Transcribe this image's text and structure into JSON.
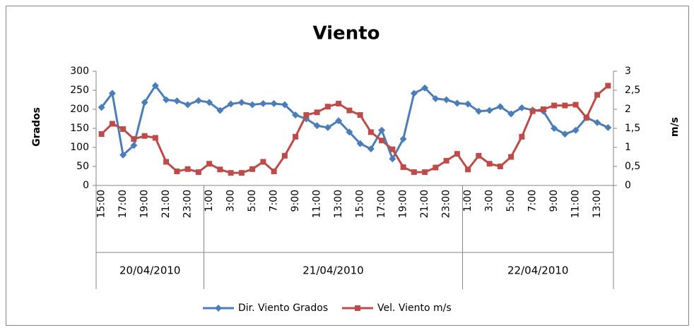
{
  "chart_data": {
    "type": "line",
    "title": "Viento",
    "y_label": "Grados",
    "y2_label": "m/s",
    "category_groups": [
      {
        "label": "20/04/2010",
        "categories": [
          "15:00",
          null,
          "17:00",
          null,
          "19:00",
          null,
          "21:00",
          null,
          "23:00",
          null
        ]
      },
      {
        "label": "21/04/2010",
        "categories": [
          "1:00",
          null,
          "3:00",
          null,
          "5:00",
          null,
          "7:00",
          null,
          "9:00",
          null,
          "11:00",
          null,
          "13:00",
          null,
          "15:00",
          null,
          "17:00",
          null,
          "19:00",
          null,
          "21:00",
          null,
          "23:00",
          null
        ]
      },
      {
        "label": "22/04/2010",
        "categories": [
          "1:00",
          null,
          "3:00",
          null,
          "5:00",
          null,
          "7:00",
          null,
          "9:00",
          null,
          "11:00",
          null,
          "13:00",
          null
        ]
      }
    ],
    "series": [
      {
        "name": "Dir. Viento Grados",
        "color": "#4a7ebb",
        "marker": "diamond",
        "axis": "y",
        "values": [
          205,
          242,
          80,
          105,
          218,
          262,
          225,
          222,
          212,
          223,
          218,
          197,
          214,
          218,
          212,
          215,
          215,
          212,
          185,
          175,
          157,
          152,
          170,
          140,
          110,
          96,
          145,
          70,
          122,
          242,
          256,
          228,
          225,
          216,
          214,
          195,
          197,
          207,
          188,
          204,
          198,
          195,
          150,
          135,
          145,
          178,
          165,
          152
        ]
      },
      {
        "name": "Vel. Viento m/s",
        "color": "#be4b48",
        "marker": "square",
        "axis": "y2",
        "values": [
          1.35,
          1.62,
          1.48,
          1.22,
          1.3,
          1.25,
          0.62,
          0.37,
          0.43,
          0.35,
          0.57,
          0.42,
          0.33,
          0.33,
          0.43,
          0.62,
          0.37,
          0.78,
          1.28,
          1.85,
          1.92,
          2.07,
          2.15,
          1.97,
          1.85,
          1.4,
          1.18,
          0.95,
          0.48,
          0.35,
          0.35,
          0.47,
          0.65,
          0.83,
          0.42,
          0.78,
          0.57,
          0.5,
          0.75,
          1.28,
          1.95,
          2.0,
          2.1,
          2.1,
          2.12,
          1.78,
          2.38,
          2.62
        ]
      }
    ],
    "ylim": [
      0,
      300
    ],
    "yticks": [
      0,
      50,
      100,
      150,
      200,
      250,
      300
    ],
    "y2lim": [
      0,
      3
    ],
    "y2ticks": [
      0,
      {
        "value": 0.5,
        "label": "0,5"
      },
      1,
      {
        "value": 1.5,
        "label": "1,5"
      },
      2,
      {
        "value": 2.5,
        "label": "2,5"
      },
      3
    ],
    "legend": "bottom",
    "grid": false
  }
}
